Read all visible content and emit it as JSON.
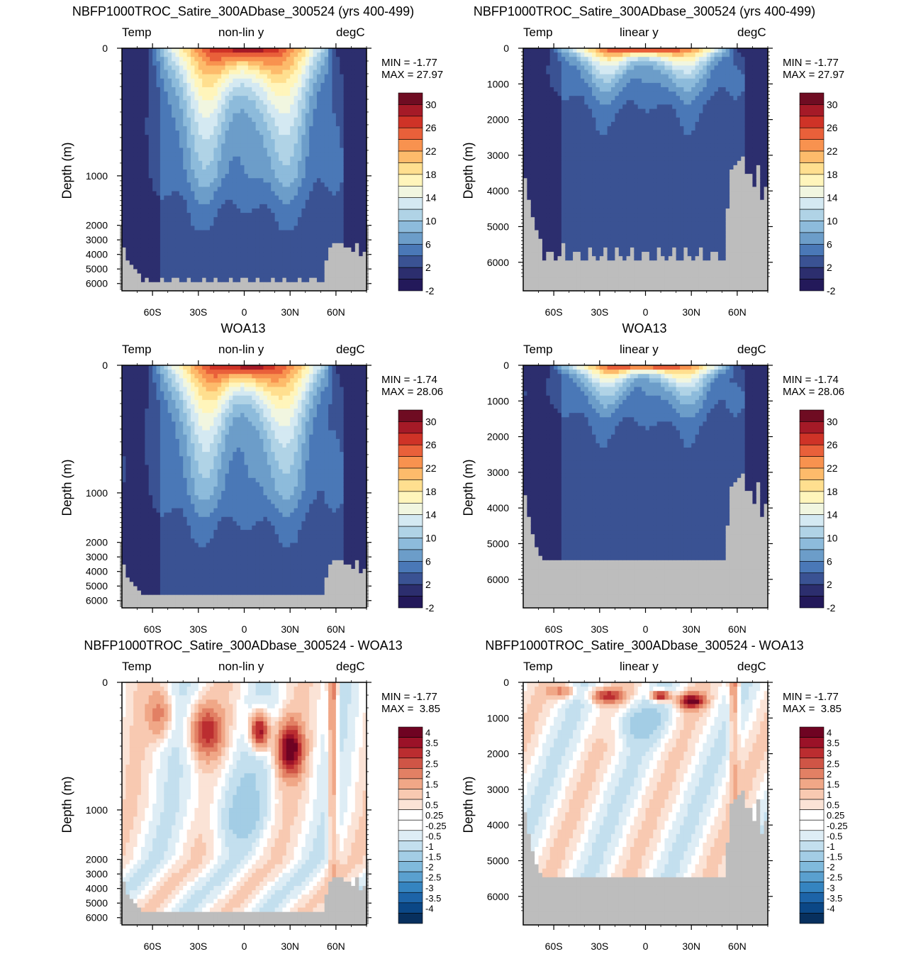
{
  "panels": [
    {
      "title": "NBFP1000TROC_Satire_300ADbase_300524 (yrs 400-499)",
      "variable": "Temp",
      "scale_label": "non-lin y",
      "units": "degC",
      "ylabel": "Depth (m)",
      "min_label": "MIN =",
      "min_value": "-1.77",
      "max_label": "MAX =",
      "max_value": "27.97",
      "y_scale": "non-linear",
      "yticks": [
        "0",
        "1000",
        "2000",
        "3000",
        "4000",
        "5000",
        "6000"
      ],
      "xticks": [
        "60S",
        "30S",
        "0",
        "30N",
        "60N"
      ],
      "field": "model",
      "colorbar_levels": [
        "30",
        "26",
        "22",
        "18",
        "14",
        "10",
        "6",
        "2",
        "-2"
      ]
    },
    {
      "title": "NBFP1000TROC_Satire_300ADbase_300524 (yrs 400-499)",
      "variable": "Temp",
      "scale_label": "linear y",
      "units": "degC",
      "ylabel": "Depth (m)",
      "min_label": "MIN =",
      "min_value": "-1.77",
      "max_label": "MAX =",
      "max_value": "27.97",
      "y_scale": "linear",
      "yticks": [
        "0",
        "1000",
        "2000",
        "3000",
        "4000",
        "5000",
        "6000"
      ],
      "xticks": [
        "60S",
        "30S",
        "0",
        "30N",
        "60N"
      ],
      "field": "model",
      "colorbar_levels": [
        "30",
        "26",
        "22",
        "18",
        "14",
        "10",
        "6",
        "2",
        "-2"
      ]
    },
    {
      "title": "WOA13",
      "variable": "Temp",
      "scale_label": "non-lin y",
      "units": "degC",
      "ylabel": "Depth (m)",
      "min_label": "MIN =",
      "min_value": "-1.74",
      "max_label": "MAX =",
      "max_value": "28.06",
      "y_scale": "non-linear",
      "yticks": [
        "0",
        "1000",
        "2000",
        "3000",
        "4000",
        "5000",
        "6000"
      ],
      "xticks": [
        "60S",
        "30S",
        "0",
        "30N",
        "60N"
      ],
      "field": "obs",
      "colorbar_levels": [
        "30",
        "26",
        "22",
        "18",
        "14",
        "10",
        "6",
        "2",
        "-2"
      ]
    },
    {
      "title": "WOA13",
      "variable": "Temp",
      "scale_label": "linear y",
      "units": "degC",
      "ylabel": "Depth (m)",
      "min_label": "MIN =",
      "min_value": "-1.74",
      "max_label": "MAX =",
      "max_value": "28.06",
      "y_scale": "linear",
      "yticks": [
        "0",
        "1000",
        "2000",
        "3000",
        "4000",
        "5000",
        "6000"
      ],
      "xticks": [
        "60S",
        "30S",
        "0",
        "30N",
        "60N"
      ],
      "field": "obs",
      "colorbar_levels": [
        "30",
        "26",
        "22",
        "18",
        "14",
        "10",
        "6",
        "2",
        "-2"
      ]
    },
    {
      "title": "NBFP1000TROC_Satire_300ADbase_300524 - WOA13",
      "variable": "Temp",
      "scale_label": "non-lin y",
      "units": "degC",
      "ylabel": "Depth (m)",
      "min_label": "MIN =",
      "min_value": "-1.77",
      "max_label": "MAX =",
      "max_value": " 3.85",
      "y_scale": "non-linear",
      "yticks": [
        "0",
        "1000",
        "2000",
        "3000",
        "4000",
        "5000",
        "6000"
      ],
      "xticks": [
        "60S",
        "30S",
        "0",
        "30N",
        "60N"
      ],
      "field": "diff",
      "colorbar_levels": [
        "4",
        "3.5",
        "3",
        "2.5",
        "2",
        "1.5",
        "1",
        "0.5",
        "0.25",
        "-0.25",
        "-0.5",
        "-1",
        "-1.5",
        "-2",
        "-2.5",
        "-3",
        "-3.5",
        "-4"
      ]
    },
    {
      "title": "NBFP1000TROC_Satire_300ADbase_300524 - WOA13",
      "variable": "Temp",
      "scale_label": "linear y",
      "units": "degC",
      "ylabel": "Depth (m)",
      "min_label": "MIN =",
      "min_value": "-1.77",
      "max_label": "MAX =",
      "max_value": " 3.85",
      "y_scale": "linear",
      "yticks": [
        "0",
        "1000",
        "2000",
        "3000",
        "4000",
        "5000",
        "6000"
      ],
      "xticks": [
        "60S",
        "30S",
        "0",
        "30N",
        "60N"
      ],
      "field": "diff",
      "colorbar_levels": [
        "4",
        "3.5",
        "3",
        "2.5",
        "2",
        "1.5",
        "1",
        "0.5",
        "0.25",
        "-0.25",
        "-0.5",
        "-1",
        "-1.5",
        "-2",
        "-2.5",
        "-3",
        "-3.5",
        "-4"
      ]
    }
  ],
  "colors": {
    "land": "#bdbdbd",
    "temp_palette": [
      "#2c2e6e",
      "#3a5293",
      "#4a78b7",
      "#6c9dc9",
      "#8dbbdb",
      "#b0d3e6",
      "#d4e9f2",
      "#f1f6e0",
      "#fff5bb",
      "#ffdf8f",
      "#fdbb6b",
      "#f8924f",
      "#e9603a",
      "#cf3327",
      "#a51a27",
      "#6f0c22"
    ],
    "diff_palette": [
      "#08305e",
      "#0b4786",
      "#1d64a8",
      "#3584c0",
      "#5aa0cf",
      "#80badc",
      "#a3cde5",
      "#c3dfee",
      "#deedf5",
      "#ffffff",
      "#fbe3d6",
      "#f8c9b1",
      "#f0a787",
      "#e28064",
      "#cf5546",
      "#bb2d30",
      "#9b1228",
      "#6f0322"
    ]
  },
  "chart_data": [
    {
      "type": "heatmap",
      "title": "NBFP1000TROC_Satire_300ADbase_300524 (yrs 400-499)",
      "xlabel": "",
      "ylabel": "Depth (m)",
      "x_ticks": [
        "60S",
        "30S",
        "0",
        "30N",
        "60N"
      ],
      "y_ticks": [
        0,
        1000,
        2000,
        3000,
        4000,
        5000,
        6000
      ],
      "y_scale": "non-linear",
      "xlim": [
        -80,
        80
      ],
      "ylim": [
        6500,
        0
      ],
      "value_range": [
        -1.77,
        27.97
      ],
      "color_levels": [
        -2,
        2,
        6,
        10,
        14,
        18,
        22,
        26,
        30
      ],
      "units": "degC"
    },
    {
      "type": "heatmap",
      "title": "NBFP1000TROC_Satire_300ADbase_300524 (yrs 400-499)",
      "xlabel": "",
      "ylabel": "Depth (m)",
      "x_ticks": [
        "60S",
        "30S",
        "0",
        "30N",
        "60N"
      ],
      "y_ticks": [
        0,
        1000,
        2000,
        3000,
        4000,
        5000,
        6000
      ],
      "y_scale": "linear",
      "xlim": [
        -80,
        80
      ],
      "ylim": [
        6800,
        0
      ],
      "value_range": [
        -1.77,
        27.97
      ],
      "color_levels": [
        -2,
        2,
        6,
        10,
        14,
        18,
        22,
        26,
        30
      ],
      "units": "degC"
    },
    {
      "type": "heatmap",
      "title": "WOA13",
      "xlabel": "",
      "ylabel": "Depth (m)",
      "x_ticks": [
        "60S",
        "30S",
        "0",
        "30N",
        "60N"
      ],
      "y_ticks": [
        0,
        1000,
        2000,
        3000,
        4000,
        5000,
        6000
      ],
      "y_scale": "non-linear",
      "xlim": [
        -80,
        80
      ],
      "ylim": [
        6500,
        0
      ],
      "value_range": [
        -1.74,
        28.06
      ],
      "color_levels": [
        -2,
        2,
        6,
        10,
        14,
        18,
        22,
        26,
        30
      ],
      "units": "degC"
    },
    {
      "type": "heatmap",
      "title": "WOA13",
      "xlabel": "",
      "ylabel": "Depth (m)",
      "x_ticks": [
        "60S",
        "30S",
        "0",
        "30N",
        "60N"
      ],
      "y_ticks": [
        0,
        1000,
        2000,
        3000,
        4000,
        5000,
        6000
      ],
      "y_scale": "linear",
      "xlim": [
        -80,
        80
      ],
      "ylim": [
        6800,
        0
      ],
      "value_range": [
        -1.74,
        28.06
      ],
      "color_levels": [
        -2,
        2,
        6,
        10,
        14,
        18,
        22,
        26,
        30
      ],
      "units": "degC"
    },
    {
      "type": "heatmap",
      "title": "NBFP1000TROC_Satire_300ADbase_300524 - WOA13",
      "xlabel": "",
      "ylabel": "Depth (m)",
      "x_ticks": [
        "60S",
        "30S",
        "0",
        "30N",
        "60N"
      ],
      "y_ticks": [
        0,
        1000,
        2000,
        3000,
        4000,
        5000,
        6000
      ],
      "y_scale": "non-linear",
      "xlim": [
        -80,
        80
      ],
      "ylim": [
        6500,
        0
      ],
      "value_range": [
        -1.77,
        3.85
      ],
      "color_levels": [
        -4,
        -3.5,
        -3,
        -2.5,
        -2,
        -1.5,
        -1,
        -0.5,
        -0.25,
        0.25,
        0.5,
        1,
        1.5,
        2,
        2.5,
        3,
        3.5,
        4
      ],
      "units": "degC"
    },
    {
      "type": "heatmap",
      "title": "NBFP1000TROC_Satire_300ADbase_300524 - WOA13",
      "xlabel": "",
      "ylabel": "Depth (m)",
      "x_ticks": [
        "60S",
        "30S",
        "0",
        "30N",
        "60N"
      ],
      "y_ticks": [
        0,
        1000,
        2000,
        3000,
        4000,
        5000,
        6000
      ],
      "y_scale": "linear",
      "xlim": [
        -80,
        80
      ],
      "ylim": [
        6800,
        0
      ],
      "value_range": [
        -1.77,
        3.85
      ],
      "color_levels": [
        -4,
        -3.5,
        -3,
        -2.5,
        -2,
        -1.5,
        -1,
        -0.5,
        -0.25,
        0.25,
        0.5,
        1,
        1.5,
        2,
        2.5,
        3,
        3.5,
        4
      ],
      "units": "degC"
    }
  ]
}
